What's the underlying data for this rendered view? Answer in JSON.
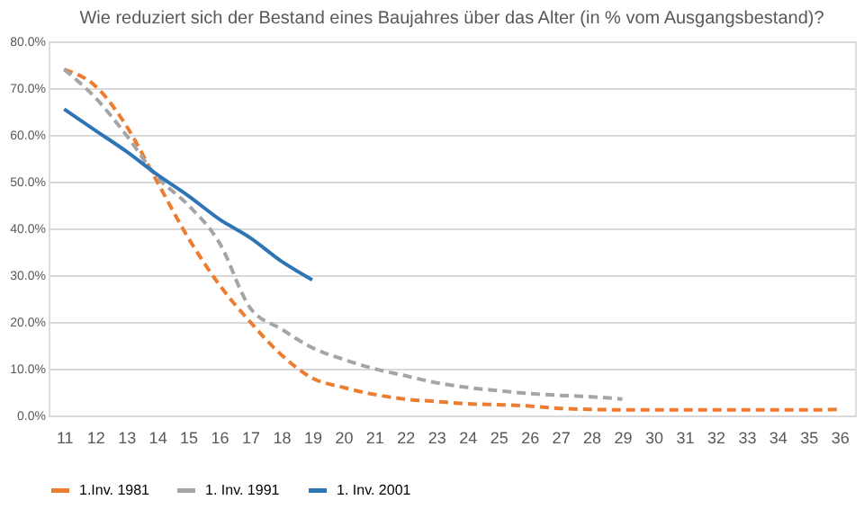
{
  "chart_data": {
    "type": "line",
    "title": "Wie reduziert sich der Bestand eines Baujahres über das Alter (in % vom Ausgangsbestand)?",
    "categories": [
      "11",
      "12",
      "13",
      "14",
      "15",
      "16",
      "17",
      "18",
      "19",
      "20",
      "21",
      "22",
      "23",
      "24",
      "25",
      "26",
      "27",
      "28",
      "29",
      "30",
      "31",
      "32",
      "33",
      "34",
      "35",
      "36"
    ],
    "series": [
      {
        "name": "1.Inv. 1981",
        "color": "#ed7d31",
        "line_style": "dashed",
        "values": [
          74,
          70.5,
          62,
          50,
          38,
          28,
          20,
          13,
          8,
          6,
          4.5,
          3.5,
          3,
          2.5,
          2.3,
          2,
          1.5,
          1.3,
          1.2,
          1.2,
          1.2,
          1.2,
          1.2,
          1.2,
          1.2,
          1.3
        ]
      },
      {
        "name": "1. Inv. 1991",
        "color": "#a5a5a5",
        "line_style": "dashed",
        "values": [
          74,
          68,
          60,
          51,
          45,
          37,
          23,
          18.5,
          14.5,
          12,
          10,
          8.5,
          7,
          6,
          5.3,
          4.7,
          4.3,
          4,
          3.5,
          null,
          null,
          null,
          null,
          null,
          null,
          null
        ]
      },
      {
        "name": "1. Inv. 2001",
        "color": "#2e75b6",
        "line_style": "solid",
        "values": [
          65.5,
          61,
          56.5,
          51.5,
          47,
          42,
          38,
          33,
          29,
          null,
          null,
          null,
          null,
          null,
          null,
          null,
          null,
          null,
          null,
          null,
          null,
          null,
          null,
          null,
          null,
          null
        ]
      }
    ],
    "ylim": [
      0,
      80
    ],
    "yticks": [
      {
        "value": 0,
        "label": "0.0%"
      },
      {
        "value": 10,
        "label": "10.0%"
      },
      {
        "value": 20,
        "label": "20.0%"
      },
      {
        "value": 30,
        "label": "30.0%"
      },
      {
        "value": 40,
        "label": "40.0%"
      },
      {
        "value": 50,
        "label": "50.0%"
      },
      {
        "value": 60,
        "label": "60.0%"
      },
      {
        "value": 70,
        "label": "70.0%"
      },
      {
        "value": 80,
        "label": "80.0%"
      }
    ],
    "grid": "y",
    "legend": "bottom",
    "marker": "none"
  }
}
